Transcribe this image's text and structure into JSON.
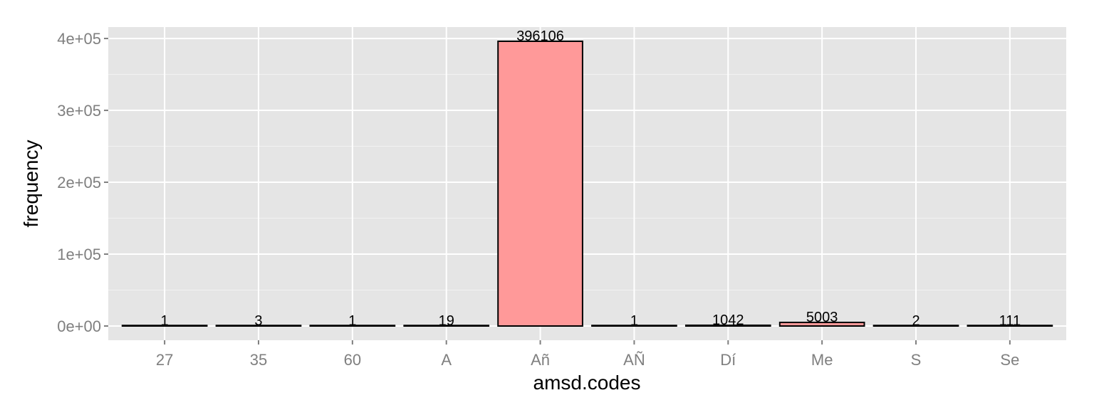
{
  "chart_data": {
    "type": "bar",
    "categories": [
      "27",
      "35",
      "60",
      "A",
      "Añ",
      "AÑ",
      "Dí",
      "Me",
      "S",
      "Se"
    ],
    "values": [
      1,
      3,
      1,
      19,
      396106,
      1,
      1042,
      5003,
      2,
      111
    ],
    "data_labels": [
      "1",
      "3",
      "1",
      "19",
      "396106",
      "1",
      "1042",
      "5003",
      "2",
      "111"
    ],
    "xlabel": "amsd.codes",
    "ylabel": "frequency",
    "ylim": [
      -19805,
      415911
    ],
    "y_ticks": [
      0,
      100000,
      200000,
      300000,
      400000
    ],
    "y_tick_labels": [
      "0e+00",
      "1e+05",
      "2e+05",
      "3e+05",
      "4e+05"
    ],
    "grid": true,
    "legend": "none",
    "colors": {
      "panel_background": "#e5e5e5",
      "grid_major": "#ffffff",
      "grid_minor": "#f2f2f2",
      "bar_fill": "#ff9999",
      "bar_outline": "#000000",
      "tick_label": "#7f7f7f",
      "axis_title": "#000000"
    }
  }
}
